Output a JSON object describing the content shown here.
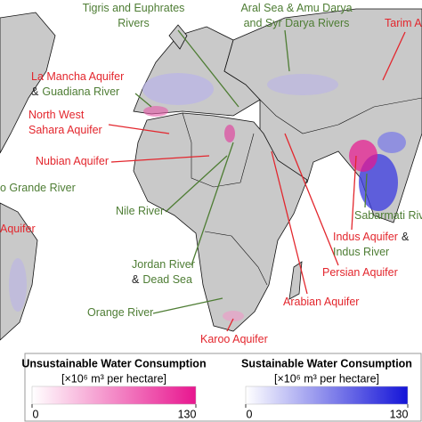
{
  "map": {
    "labels": [
      {
        "lines": [
          [
            {
              "text": "Tigris and Euphrates",
              "color": "#4e7d34"
            }
          ],
          [
            {
              "text": "Rivers",
              "color": "#4e7d34"
            }
          ]
        ]
      },
      {
        "lines": [
          [
            {
              "text": "Aral Sea & Amu Darya",
              "color": "#4e7d34"
            }
          ],
          [
            {
              "text": "and Syr Darya Rivers",
              "color": "#4e7d34"
            }
          ]
        ]
      },
      {
        "lines": [
          [
            {
              "text": "Tarim A",
              "color": "#e3262d"
            }
          ]
        ]
      },
      {
        "lines": [
          [
            {
              "text": "La Mancha Aquifer",
              "color": "#e3262d"
            }
          ],
          [
            {
              "text": "&",
              "color": "#222222"
            },
            {
              "text": "Guadiana River",
              "color": "#4e7d34"
            }
          ]
        ]
      },
      {
        "lines": [
          [
            {
              "text": "North West",
              "color": "#e3262d"
            }
          ],
          [
            {
              "text": "Sahara Aquifer",
              "color": "#e3262d"
            }
          ]
        ]
      },
      {
        "lines": [
          [
            {
              "text": "Nubian Aquifer",
              "color": "#e3262d"
            }
          ]
        ]
      },
      {
        "lines": [
          [
            {
              "text": "o Grande River",
              "color": "#4e7d34"
            }
          ]
        ]
      },
      {
        "lines": [
          [
            {
              "text": "Aquifer",
              "color": "#e3262d"
            }
          ]
        ]
      },
      {
        "lines": [
          [
            {
              "text": "Nile River",
              "color": "#4e7d34"
            }
          ]
        ]
      },
      {
        "lines": [
          [
            {
              "text": "Jordan River",
              "color": "#4e7d34"
            }
          ],
          [
            {
              "text": "&",
              "color": "#222222"
            },
            {
              "text": "Dead Sea",
              "color": "#4e7d34"
            }
          ]
        ]
      },
      {
        "lines": [
          [
            {
              "text": "Orange River",
              "color": "#4e7d34"
            }
          ]
        ]
      },
      {
        "lines": [
          [
            {
              "text": "Karoo Aquifer",
              "color": "#e3262d"
            }
          ]
        ]
      },
      {
        "lines": [
          [
            {
              "text": "Arabian Aquifer",
              "color": "#e3262d"
            }
          ]
        ]
      },
      {
        "lines": [
          [
            {
              "text": "Persian Aquifer",
              "color": "#e3262d"
            }
          ]
        ]
      },
      {
        "lines": [
          [
            {
              "text": "Indus Aquifer",
              "color": "#e3262d"
            },
            {
              "text": "&",
              "color": "#222222"
            }
          ],
          [
            {
              "text": "Indus River",
              "color": "#4e7d34"
            }
          ]
        ]
      },
      {
        "lines": [
          [
            {
              "text": "Sabarmati Riv",
              "color": "#4e7d34"
            }
          ]
        ]
      }
    ]
  },
  "legend": {
    "unsustainable": {
      "title": "Unsustainable Water Consumption",
      "unit": "[×10⁶ m³ per hectare]",
      "colors": [
        "#ffffff",
        "#e8168f"
      ],
      "ticks": [
        0,
        130
      ]
    },
    "sustainable": {
      "title": "Sustainable Water Consumption",
      "unit": "[×10⁶ m³ per hectare]",
      "colors": [
        "#ffffff",
        "#1414d8"
      ],
      "ticks": [
        0,
        130
      ]
    }
  }
}
